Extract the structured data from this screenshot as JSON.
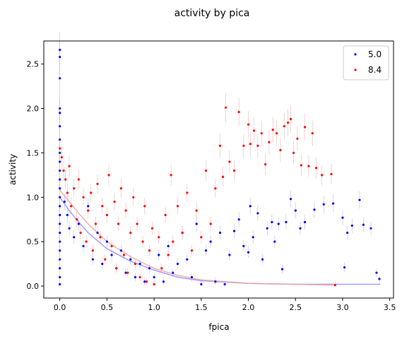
{
  "chart_data": {
    "type": "scatter",
    "title": "activity by pica",
    "xlabel": "fpica",
    "ylabel": "activity",
    "xlim": [
      -0.17,
      3.54
    ],
    "ylim": [
      -0.135,
      2.76
    ],
    "xticks": [
      "0.0",
      "0.5",
      "1.0",
      "1.5",
      "2.0",
      "2.5",
      "3.0",
      "3.5"
    ],
    "xtick_values": [
      0,
      0.5,
      1.0,
      1.5,
      2.0,
      2.5,
      3.0,
      3.5
    ],
    "yticks": [
      "0.0",
      "0.5",
      "1.0",
      "1.5",
      "2.0",
      "2.5"
    ],
    "ytick_values": [
      0,
      0.5,
      1.0,
      1.5,
      2.0,
      2.5
    ],
    "grid": false,
    "legend_position": "upper-right",
    "series": [
      {
        "name": "5.0",
        "color": "#0000ff",
        "fit_color": "#8c8cff",
        "error_color": "#a8a8d8",
        "fit_curve": [
          [
            0,
            1.0
          ],
          [
            0.1,
            0.85
          ],
          [
            0.2,
            0.72
          ],
          [
            0.3,
            0.6
          ],
          [
            0.5,
            0.42
          ],
          [
            0.75,
            0.28
          ],
          [
            1.0,
            0.18
          ],
          [
            1.25,
            0.1
          ],
          [
            1.5,
            0.06
          ],
          [
            2.0,
            0.03
          ],
          [
            2.5,
            0.02
          ],
          [
            3.0,
            0.02
          ],
          [
            3.4,
            0.02
          ]
        ],
        "points": [
          [
            0,
            2.66
          ],
          [
            0,
            2.58
          ],
          [
            0,
            2.34
          ],
          [
            0,
            2.0
          ],
          [
            0,
            1.95
          ],
          [
            0,
            1.8
          ],
          [
            0,
            1.65
          ],
          [
            0,
            1.5
          ],
          [
            0,
            1.4
          ],
          [
            0,
            1.3
          ],
          [
            0,
            1.2
          ],
          [
            0,
            1.1
          ],
          [
            0,
            1.0
          ],
          [
            0,
            0.9
          ],
          [
            0,
            0.8
          ],
          [
            0,
            0.7
          ],
          [
            0,
            0.6
          ],
          [
            0,
            0.5
          ],
          [
            0,
            0.4
          ],
          [
            0,
            0.3
          ],
          [
            0,
            0.2
          ],
          [
            0,
            0.1
          ],
          [
            0,
            0.02
          ],
          [
            0.05,
            0.95
          ],
          [
            0.08,
            0.8
          ],
          [
            0.1,
            0.65
          ],
          [
            0.15,
            0.55
          ],
          [
            0.2,
            0.7
          ],
          [
            0.25,
            0.45
          ],
          [
            0.3,
            0.9
          ],
          [
            0.35,
            0.3
          ],
          [
            0.4,
            0.6
          ],
          [
            0.45,
            0.25
          ],
          [
            0.5,
            0.5
          ],
          [
            0.55,
            0.35
          ],
          [
            0.6,
            0.2
          ],
          [
            0.65,
            0.4
          ],
          [
            0.7,
            0.15
          ],
          [
            0.75,
            0.3
          ],
          [
            0.8,
            0.1
          ],
          [
            0.85,
            0.25
          ],
          [
            0.9,
            0.05
          ],
          [
            0.95,
            0.2
          ],
          [
            1.0,
            0.1
          ],
          [
            1.05,
            0.35
          ],
          [
            1.1,
            0.05
          ],
          [
            1.15,
            0.45
          ],
          [
            1.2,
            0.15
          ],
          [
            1.25,
            0.25
          ],
          [
            1.3,
            0.6
          ],
          [
            1.35,
            0.3
          ],
          [
            1.4,
            0.1
          ],
          [
            1.45,
            0.7
          ],
          [
            1.5,
            0.02
          ],
          [
            1.55,
            0.4
          ],
          [
            1.6,
            0.5
          ],
          [
            1.65,
            0.05
          ],
          [
            1.7,
            0.6
          ],
          [
            1.75,
            0.02
          ],
          [
            1.8,
            0.35
          ],
          [
            1.85,
            0.62
          ],
          [
            1.9,
            0.75
          ],
          [
            1.95,
            0.45
          ],
          [
            2.0,
            0.38
          ],
          [
            2.02,
            0.9
          ],
          [
            2.05,
            0.55
          ],
          [
            2.1,
            0.82
          ],
          [
            2.15,
            0.3
          ],
          [
            2.2,
            0.65
          ],
          [
            2.25,
            0.72
          ],
          [
            2.28,
            0.5
          ],
          [
            2.32,
            0.7
          ],
          [
            2.36,
            0.19
          ],
          [
            2.4,
            0.72
          ],
          [
            2.45,
            0.98
          ],
          [
            2.5,
            0.85
          ],
          [
            2.55,
            0.65
          ],
          [
            2.6,
            0.72
          ],
          [
            2.7,
            0.86
          ],
          [
            2.8,
            0.92
          ],
          [
            2.9,
            0.93
          ],
          [
            3.0,
            0.77
          ],
          [
            3.05,
            0.6
          ],
          [
            3.1,
            0.68
          ],
          [
            3.18,
            0.97
          ],
          [
            3.22,
            0.69
          ],
          [
            3.3,
            0.65
          ],
          [
            3.36,
            0.15
          ],
          [
            3.39,
            0.08
          ],
          [
            3.02,
            0.21
          ]
        ]
      },
      {
        "name": "8.4",
        "color": "#ff0000",
        "fit_color": "#f0a0a0",
        "error_color": "#e8a0a0",
        "fit_curve": [
          [
            0,
            1.08
          ],
          [
            0.1,
            0.95
          ],
          [
            0.2,
            0.82
          ],
          [
            0.3,
            0.7
          ],
          [
            0.5,
            0.5
          ],
          [
            0.75,
            0.33
          ],
          [
            1.0,
            0.2
          ],
          [
            1.25,
            0.12
          ],
          [
            1.5,
            0.07
          ],
          [
            2.0,
            0.03
          ],
          [
            2.5,
            0.02
          ],
          [
            2.9,
            0.01
          ]
        ],
        "points": [
          [
            0,
            1.55
          ],
          [
            0.02,
            1.45
          ],
          [
            0.04,
            1.3
          ],
          [
            0.06,
            1.2
          ],
          [
            0.08,
            1.05
          ],
          [
            0.1,
            1.35
          ],
          [
            0.12,
            0.9
          ],
          [
            0.15,
            1.1
          ],
          [
            0.18,
            0.75
          ],
          [
            0.2,
            1.2
          ],
          [
            0.22,
            0.6
          ],
          [
            0.25,
            1.0
          ],
          [
            0.28,
            0.5
          ],
          [
            0.3,
            0.85
          ],
          [
            0.33,
            1.05
          ],
          [
            0.35,
            0.4
          ],
          [
            0.38,
            0.7
          ],
          [
            0.4,
            1.15
          ],
          [
            0.43,
            0.55
          ],
          [
            0.45,
            0.9
          ],
          [
            0.48,
            0.3
          ],
          [
            0.5,
            0.8
          ],
          [
            0.52,
            1.25
          ],
          [
            0.55,
            0.45
          ],
          [
            0.58,
            0.95
          ],
          [
            0.6,
            0.2
          ],
          [
            0.62,
            0.7
          ],
          [
            0.65,
            1.1
          ],
          [
            0.68,
            0.35
          ],
          [
            0.7,
            0.85
          ],
          [
            0.72,
            0.15
          ],
          [
            0.75,
            0.6
          ],
          [
            0.78,
            1.0
          ],
          [
            0.8,
            0.25
          ],
          [
            0.82,
            0.7
          ],
          [
            0.85,
            0.1
          ],
          [
            0.88,
            0.5
          ],
          [
            0.9,
            0.9
          ],
          [
            0.92,
            0.05
          ],
          [
            0.95,
            0.4
          ],
          [
            0.98,
            0.65
          ],
          [
            1.0,
            0.02
          ],
          [
            1.05,
            0.55
          ],
          [
            1.08,
            0.2
          ],
          [
            1.12,
            0.8
          ],
          [
            1.15,
            0.35
          ],
          [
            1.18,
            1.25
          ],
          [
            1.2,
            0.5
          ],
          [
            1.25,
            0.9
          ],
          [
            1.3,
            0.6
          ],
          [
            1.35,
            1.05
          ],
          [
            1.4,
            0.4
          ],
          [
            1.45,
            0.85
          ],
          [
            1.5,
            0.55
          ],
          [
            1.55,
            1.3
          ],
          [
            1.6,
            0.7
          ],
          [
            1.65,
            1.1
          ],
          [
            1.7,
            1.58
          ],
          [
            1.73,
            1.23
          ],
          [
            1.76,
            2.01
          ],
          [
            1.8,
            1.4
          ],
          [
            1.85,
            1.3
          ],
          [
            1.9,
            1.96
          ],
          [
            1.95,
            1.58
          ],
          [
            2.0,
            1.82
          ],
          [
            2.02,
            1.6
          ],
          [
            2.06,
            1.75
          ],
          [
            2.1,
            1.58
          ],
          [
            2.14,
            1.72
          ],
          [
            2.18,
            1.37
          ],
          [
            2.22,
            1.62
          ],
          [
            2.26,
            1.76
          ],
          [
            2.3,
            1.72
          ],
          [
            2.34,
            1.53
          ],
          [
            2.38,
            1.8
          ],
          [
            2.42,
            1.84
          ],
          [
            2.45,
            1.88
          ],
          [
            2.48,
            1.5
          ],
          [
            2.52,
            1.66
          ],
          [
            2.56,
            1.36
          ],
          [
            2.6,
            1.79
          ],
          [
            2.64,
            1.35
          ],
          [
            2.68,
            1.72
          ],
          [
            2.72,
            1.33
          ],
          [
            2.78,
            1.25
          ],
          [
            2.88,
            1.26
          ],
          [
            2.92,
            0.01
          ]
        ]
      }
    ]
  }
}
